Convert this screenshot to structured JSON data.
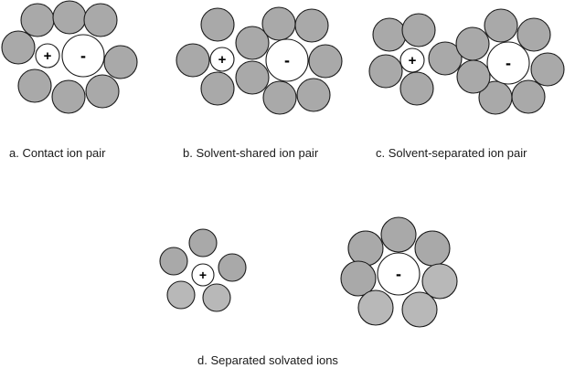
{
  "ion_labels": {
    "cation": "+",
    "anion": "-"
  },
  "panels": {
    "a": {
      "caption": "a. Contact ion pair"
    },
    "b": {
      "caption": "b. Solvent-shared ion pair"
    },
    "c": {
      "caption": "c. Solvent-separated ion pair"
    },
    "d": {
      "caption": "d. Separated solvated ions"
    }
  },
  "colors": {
    "solvent_fill": "#a9a9a9",
    "solvent_fill_light": "#b8b8b8",
    "ion_fill": "#ffffff",
    "outline": "#1a1a1a"
  }
}
